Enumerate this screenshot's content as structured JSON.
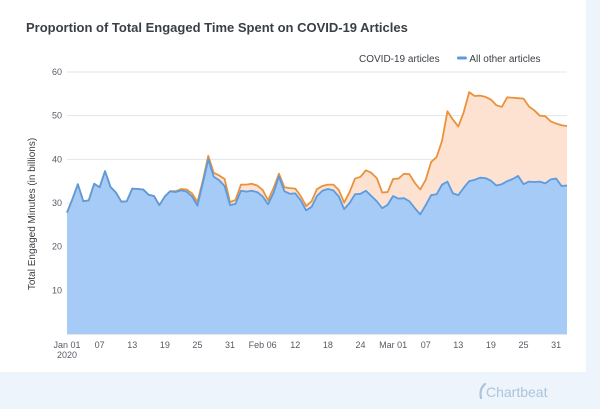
{
  "brand": {
    "name": "Chartbeat",
    "icon": "chartbeat-swoosh-icon"
  },
  "chart_data": {
    "type": "area",
    "stacked": true,
    "title": "Proportion of Total Engaged Time Spent on COVID-19 Articles",
    "xlabel": "",
    "ylabel": "Total Engaged Minutes (in billions)",
    "ylim": [
      0,
      60
    ],
    "yticks": [
      10,
      20,
      30,
      40,
      50,
      60
    ],
    "grid": true,
    "legend_position": "top-right",
    "x": [
      "2020-01-01",
      "2020-01-02",
      "2020-01-03",
      "2020-01-04",
      "2020-01-05",
      "2020-01-06",
      "2020-01-07",
      "2020-01-08",
      "2020-01-09",
      "2020-01-10",
      "2020-01-11",
      "2020-01-12",
      "2020-01-13",
      "2020-01-14",
      "2020-01-15",
      "2020-01-16",
      "2020-01-17",
      "2020-01-18",
      "2020-01-19",
      "2020-01-20",
      "2020-01-21",
      "2020-01-22",
      "2020-01-23",
      "2020-01-24",
      "2020-01-25",
      "2020-01-26",
      "2020-01-27",
      "2020-01-28",
      "2020-01-29",
      "2020-01-30",
      "2020-01-31",
      "2020-02-01",
      "2020-02-02",
      "2020-02-03",
      "2020-02-04",
      "2020-02-05",
      "2020-02-06",
      "2020-02-07",
      "2020-02-08",
      "2020-02-09",
      "2020-02-10",
      "2020-02-11",
      "2020-02-12",
      "2020-02-13",
      "2020-02-14",
      "2020-02-15",
      "2020-02-16",
      "2020-02-17",
      "2020-02-18",
      "2020-02-19",
      "2020-02-20",
      "2020-02-21",
      "2020-02-22",
      "2020-02-23",
      "2020-02-24",
      "2020-02-25",
      "2020-02-26",
      "2020-02-27",
      "2020-02-28",
      "2020-02-29",
      "2020-03-01",
      "2020-03-02",
      "2020-03-03",
      "2020-03-04",
      "2020-03-05",
      "2020-03-06",
      "2020-03-07",
      "2020-03-08",
      "2020-03-09",
      "2020-03-10",
      "2020-03-11",
      "2020-03-12",
      "2020-03-13",
      "2020-03-14",
      "2020-03-15",
      "2020-03-16",
      "2020-03-17",
      "2020-03-18",
      "2020-03-19",
      "2020-03-20",
      "2020-03-21",
      "2020-03-22",
      "2020-03-23",
      "2020-03-24",
      "2020-03-25",
      "2020-03-26",
      "2020-03-27",
      "2020-03-28",
      "2020-03-29",
      "2020-03-30",
      "2020-03-31",
      "2020-04-01",
      "2020-04-02"
    ],
    "xtick_labels": [
      {
        "date": "2020-01-01",
        "label": "Jan 01",
        "sublabel": "2020"
      },
      {
        "date": "2020-01-07",
        "label": "07"
      },
      {
        "date": "2020-01-13",
        "label": "13"
      },
      {
        "date": "2020-01-19",
        "label": "19"
      },
      {
        "date": "2020-01-25",
        "label": "25"
      },
      {
        "date": "2020-01-31",
        "label": "31"
      },
      {
        "date": "2020-02-06",
        "label": "Feb 06"
      },
      {
        "date": "2020-02-12",
        "label": "12"
      },
      {
        "date": "2020-02-18",
        "label": "18"
      },
      {
        "date": "2020-02-24",
        "label": "24"
      },
      {
        "date": "2020-03-01",
        "label": "Mar 01"
      },
      {
        "date": "2020-03-07",
        "label": "07"
      },
      {
        "date": "2020-03-13",
        "label": "13"
      },
      {
        "date": "2020-03-19",
        "label": "19"
      },
      {
        "date": "2020-03-25",
        "label": "25"
      },
      {
        "date": "2020-03-31",
        "label": "31"
      }
    ],
    "series": [
      {
        "name": "All other articles",
        "color": "#5b9be0",
        "fill": "#a7cbf7",
        "values": [
          27.8,
          30.9,
          34.3,
          30.4,
          30.6,
          34.4,
          33.6,
          37.3,
          33.7,
          32.4,
          30.3,
          30.4,
          33.3,
          33.2,
          33.1,
          31.9,
          31.6,
          29.5,
          31.5,
          32.7,
          32.5,
          32.9,
          32.6,
          31.5,
          29.4,
          34.6,
          40.0,
          36.0,
          35.2,
          33.9,
          29.5,
          29.8,
          32.8,
          32.6,
          32.8,
          32.5,
          31.5,
          29.7,
          32.3,
          36.1,
          32.7,
          32.1,
          32.2,
          30.6,
          28.3,
          29.1,
          31.6,
          32.8,
          33.2,
          32.9,
          31.5,
          28.6,
          30.0,
          32.0,
          32.1,
          32.8,
          31.6,
          30.4,
          28.8,
          29.6,
          31.6,
          31.0,
          31.1,
          30.4,
          28.8,
          27.4,
          29.5,
          31.8,
          32.0,
          34.2,
          34.9,
          32.2,
          31.8,
          33.5,
          35.0,
          35.3,
          35.8,
          35.7,
          35.1,
          34.0,
          34.3,
          35.0,
          35.5,
          36.2,
          34.3,
          34.9,
          34.8,
          34.9,
          34.5,
          35.4,
          35.6,
          33.9,
          34.0
        ]
      },
      {
        "name": "COVID-19 articles",
        "color": "#e8933b",
        "fill": "#fde1d1",
        "values": [
          0.0,
          0.0,
          0.0,
          0.0,
          0.0,
          0.0,
          0.0,
          0.0,
          0.0,
          0.0,
          0.0,
          0.0,
          0.0,
          0.0,
          0.0,
          0.0,
          0.0,
          0.0,
          0.0,
          0.0,
          0.2,
          0.3,
          0.5,
          0.7,
          0.8,
          0.6,
          0.8,
          0.9,
          1.1,
          1.6,
          0.7,
          0.9,
          1.4,
          1.6,
          1.6,
          1.5,
          1.5,
          0.9,
          1.1,
          0.6,
          0.9,
          1.3,
          1.1,
          1.0,
          1.0,
          1.3,
          1.6,
          1.1,
          1.0,
          1.3,
          1.5,
          1.5,
          2.5,
          3.6,
          3.9,
          4.7,
          5.3,
          5.3,
          3.6,
          2.9,
          3.9,
          4.6,
          5.6,
          6.2,
          5.8,
          5.7,
          5.8,
          7.6,
          8.5,
          10.0,
          16.1,
          16.9,
          15.7,
          17.3,
          20.4,
          19.2,
          18.8,
          18.6,
          18.6,
          18.4,
          17.7,
          19.2,
          18.6,
          17.8,
          19.6,
          17.2,
          16.4,
          15.1,
          15.4,
          13.3,
          12.6,
          13.9,
          13.6
        ]
      }
    ]
  }
}
